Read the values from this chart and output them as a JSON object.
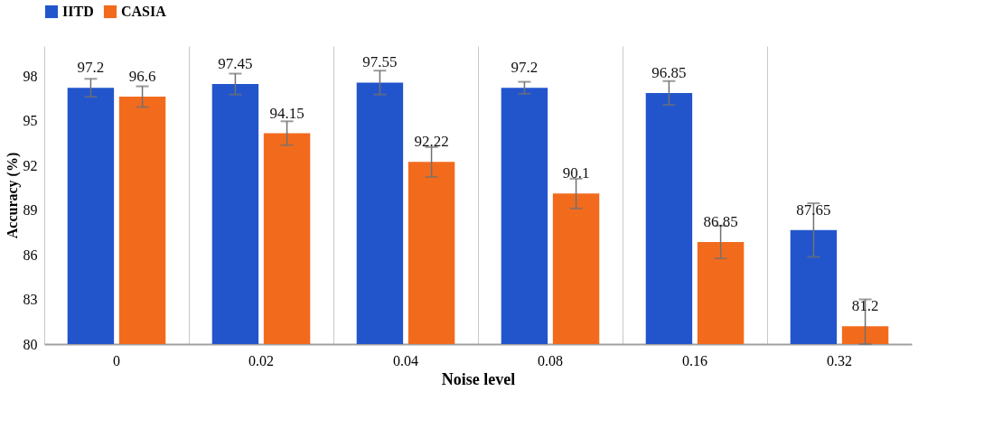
{
  "chart_data": {
    "type": "bar",
    "xlabel": "Noise level",
    "ylabel": "Accuracy (%)",
    "categories": [
      "0",
      "0.02",
      "0.04",
      "0.08",
      "0.16",
      "0.32"
    ],
    "series": [
      {
        "name": "IITD",
        "color": "#2255cc",
        "values": [
          97.2,
          97.45,
          97.55,
          97.2,
          96.85,
          87.65
        ],
        "errors": [
          0.6,
          0.7,
          0.8,
          0.4,
          0.8,
          1.8
        ]
      },
      {
        "name": "CASIA",
        "color": "#f26b1d",
        "values": [
          96.6,
          94.15,
          92.22,
          90.1,
          86.85,
          81.2
        ],
        "errors": [
          0.7,
          0.8,
          1.0,
          1.0,
          1.1,
          [
            80,
            83
          ]
        ]
      }
    ],
    "ylim": [
      80,
      100
    ],
    "yticks": [
      80,
      83,
      86,
      89,
      92,
      95,
      98
    ],
    "data_labels": true,
    "grid": "x",
    "legend": "top"
  }
}
